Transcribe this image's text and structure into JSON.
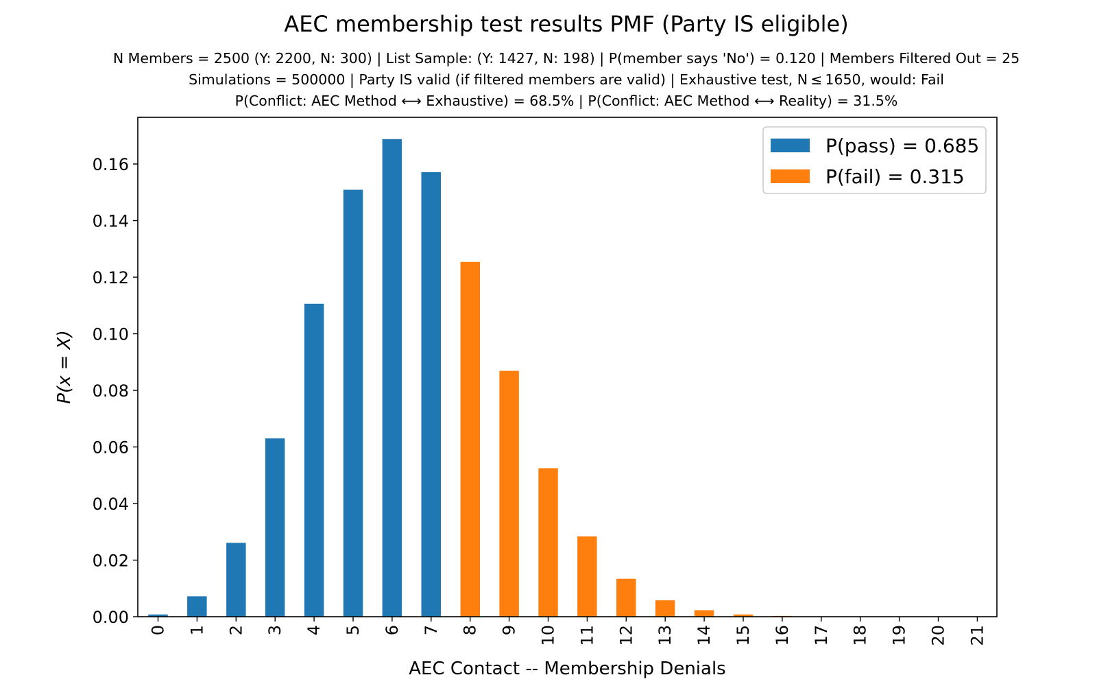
{
  "chart_data": {
    "type": "bar",
    "title": "AEC membership test results PMF (Party IS eligible)",
    "subtitle_lines": [
      "N Members = 2500 (Y: 2200, N: 300) | List Sample: (Y: 1427, N: 198) | P(member says 'No') = 0.120 | Members Filtered Out = 25",
      "Simulations = 500000 | Party IS valid (if filtered members are valid) | Exhaustive test, N ≤ 1650, would: Fail",
      "P(Conflict: AEC Method ⟷ Exhaustive) = 68.5% | P(Conflict: AEC Method ⟷ Reality) = 31.5%"
    ],
    "xlabel": "AEC Contact -- Membership Denials",
    "ylabel": "P(x = X)",
    "categories": [
      "0",
      "1",
      "2",
      "3",
      "4",
      "5",
      "6",
      "7",
      "8",
      "9",
      "10",
      "11",
      "12",
      "13",
      "14",
      "15",
      "16",
      "17",
      "18",
      "19",
      "20",
      "21"
    ],
    "values": [
      0.0008,
      0.0072,
      0.0261,
      0.063,
      0.1106,
      0.1509,
      0.1688,
      0.1571,
      0.1254,
      0.0869,
      0.0525,
      0.0284,
      0.0134,
      0.0058,
      0.0023,
      0.0008,
      0.0003,
      0.0001,
      0.0,
      0.0,
      0.0,
      0.0
    ],
    "pass_max_category": 7,
    "yticks": [
      "0.00",
      "0.02",
      "0.04",
      "0.06",
      "0.08",
      "0.10",
      "0.12",
      "0.14",
      "0.16"
    ],
    "ylim": [
      0,
      0.1765
    ],
    "grid": false,
    "legend_position": "top-right",
    "legend": [
      {
        "label": "P(pass) = 0.685",
        "color": "#1f77b4"
      },
      {
        "label": "P(fail) = 0.315",
        "color": "#ff7f0e"
      }
    ],
    "colors": {
      "pass": "#1f77b4",
      "fail": "#ff7f0e"
    }
  }
}
